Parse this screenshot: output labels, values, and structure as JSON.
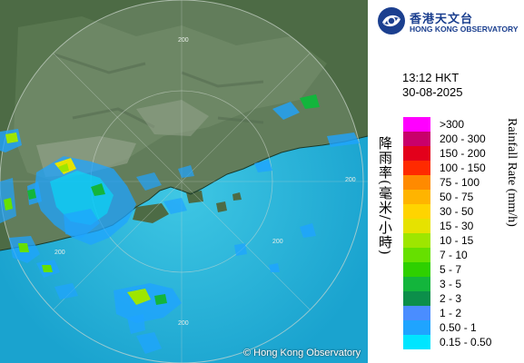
{
  "map": {
    "range_labels": [
      "200",
      "200",
      "200",
      "200",
      "200"
    ],
    "copyright": "© Hong Kong Observatory"
  },
  "logo": {
    "name_cn": "香港天文台",
    "name_en": "HONG KONG OBSERVATORY",
    "icon": "hko-logo-icon",
    "color": "#1b3f8f"
  },
  "timestamp": {
    "time": "13:12 HKT",
    "date": "30-08-2025"
  },
  "legend": {
    "title_cn": "降雨率(毫米/小時)",
    "title_en": "Rainfall Rate (mm/h)",
    "items": [
      {
        "label": ">300",
        "color": "#ff00ff"
      },
      {
        "label": "200 - 300",
        "color": "#c9006b"
      },
      {
        "label": "150 - 200",
        "color": "#e3001b"
      },
      {
        "label": "100 - 150",
        "color": "#ff2a00"
      },
      {
        "label": "75 - 100",
        "color": "#ff8a00"
      },
      {
        "label": "50 - 75",
        "color": "#ffb400"
      },
      {
        "label": "30 - 50",
        "color": "#ffd400"
      },
      {
        "label": "15 - 30",
        "color": "#e6e200"
      },
      {
        "label": "10 - 15",
        "color": "#9ee600"
      },
      {
        "label": "7 - 10",
        "color": "#66e000"
      },
      {
        "label": "5 - 7",
        "color": "#2ed000"
      },
      {
        "label": "3 - 5",
        "color": "#13b53c"
      },
      {
        "label": "2 - 3",
        "color": "#0c8f4a"
      },
      {
        "label": "1 - 2",
        "color": "#4a8dff"
      },
      {
        "label": "0.50 - 1",
        "color": "#1fa4ff"
      },
      {
        "label": "0.15 - 0.50",
        "color": "#00e5ff"
      }
    ]
  }
}
